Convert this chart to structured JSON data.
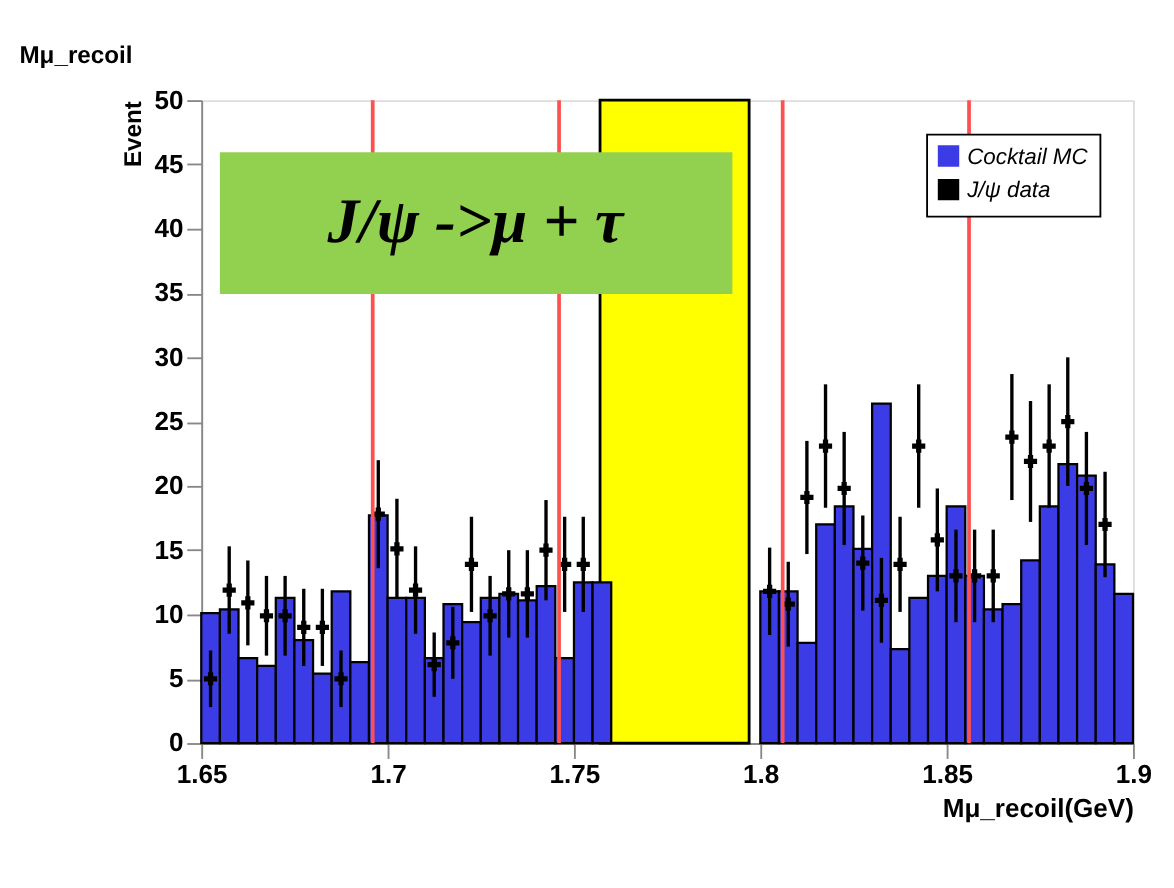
{
  "chart_data": {
    "type": "histogram",
    "title": "Mμ_recoil",
    "xlabel": "Mμ_recoil(GeV)",
    "ylabel": "Event",
    "annotations": [
      "J/ψ ->μ + τ"
    ],
    "xlim": [
      1.65,
      1.9
    ],
    "xticks": [
      1.65,
      1.7,
      1.75,
      1.8,
      1.85,
      1.9
    ],
    "ylim": [
      0,
      50
    ],
    "yticks": [
      0,
      5,
      10,
      15,
      20,
      25,
      30,
      35,
      40,
      45,
      50
    ],
    "grid": false,
    "legend": "top right",
    "bins": [
      1.65,
      1.655,
      1.66,
      1.665,
      1.67,
      1.675,
      1.68,
      1.685,
      1.69,
      1.695,
      1.7,
      1.705,
      1.71,
      1.715,
      1.72,
      1.725,
      1.73,
      1.735,
      1.74,
      1.745,
      1.75,
      1.755,
      1.76,
      1.765,
      1.77,
      1.775,
      1.78,
      1.785,
      1.79,
      1.795,
      1.8,
      1.805,
      1.81,
      1.815,
      1.82,
      1.825,
      1.83,
      1.835,
      1.84,
      1.845,
      1.85,
      1.855,
      1.86,
      1.865,
      1.87,
      1.875,
      1.88,
      1.885,
      1.89,
      1.895,
      1.9
    ],
    "series": [
      {
        "name": "Cocktail MC",
        "type": "histogram",
        "color": "#3c3ce6",
        "values": [
          10.1,
          10.4,
          6.6,
          6.0,
          11.3,
          8.0,
          5.4,
          11.8,
          6.3,
          17.7,
          11.3,
          11.3,
          6.6,
          10.8,
          9.4,
          11.3,
          11.6,
          11.1,
          12.2,
          6.6,
          12.5,
          12.5,
          null,
          null,
          null,
          null,
          null,
          null,
          null,
          null,
          11.8,
          11.8,
          7.8,
          17.0,
          18.4,
          15.1,
          26.4,
          7.3,
          11.3,
          13.0,
          18.4,
          13.0,
          10.4,
          10.8,
          14.2,
          18.4,
          21.7,
          20.8,
          13.9,
          11.6
        ]
      },
      {
        "name": "J/ψ data",
        "type": "scatter",
        "color": "#000000",
        "marker": "cross",
        "x": [
          1.6525,
          1.6575,
          1.6625,
          1.6675,
          1.6725,
          1.6775,
          1.6825,
          1.6875,
          1.6975,
          1.7025,
          1.7075,
          1.7125,
          1.7175,
          1.7225,
          1.7275,
          1.7325,
          1.7375,
          1.7425,
          1.7475,
          1.7525,
          1.8025,
          1.8075,
          1.8125,
          1.8175,
          1.8225,
          1.8275,
          1.8325,
          1.8375,
          1.8425,
          1.8475,
          1.8525,
          1.8575,
          1.8625,
          1.8675,
          1.8725,
          1.8775,
          1.8825,
          1.8875,
          1.8925
        ],
        "values": [
          5.0,
          11.9,
          10.9,
          9.9,
          9.9,
          9.0,
          9.0,
          5.0,
          17.8,
          15.1,
          11.9,
          6.1,
          7.8,
          13.9,
          9.9,
          11.6,
          11.6,
          15.0,
          13.9,
          13.9,
          11.8,
          10.8,
          19.1,
          23.1,
          19.8,
          14.0,
          11.1,
          13.9,
          23.1,
          15.8,
          13.0,
          13.0,
          13.0,
          23.8,
          21.9,
          23.1,
          25.0,
          19.8,
          17.0
        ],
        "errors": [
          2.2,
          3.4,
          3.3,
          3.1,
          3.1,
          3.0,
          3.0,
          2.2,
          4.2,
          3.9,
          3.4,
          2.5,
          2.8,
          3.7,
          3.1,
          3.4,
          3.4,
          3.9,
          3.7,
          3.7,
          3.4,
          3.3,
          4.4,
          4.8,
          4.4,
          3.7,
          3.3,
          3.7,
          4.8,
          4.0,
          3.6,
          3.6,
          3.6,
          4.9,
          4.7,
          4.8,
          5.0,
          4.4,
          4.1
        ]
      }
    ],
    "ref_lines": [
      {
        "axis": "x",
        "value": 1.696,
        "color": "#ff5050"
      },
      {
        "axis": "x",
        "value": 1.746,
        "color": "#ff5050"
      },
      {
        "axis": "x",
        "value": 1.806,
        "color": "#ff5050"
      },
      {
        "axis": "x",
        "value": 1.856,
        "color": "#ff5050"
      }
    ],
    "bands": [
      {
        "axis": "x",
        "from": 1.757,
        "to": 1.797,
        "color": "#ffff00"
      }
    ]
  }
}
